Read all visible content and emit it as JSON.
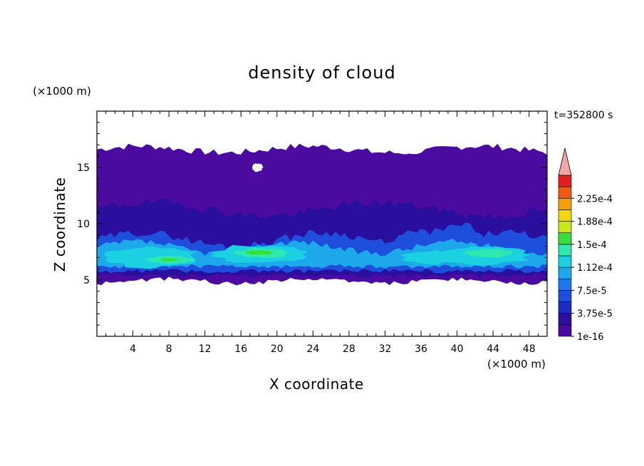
{
  "chart_data": {
    "type": "heatmap",
    "title": "density of cloud",
    "xlabel": "X coordinate",
    "ylabel": "Z coordinate",
    "x_unit": "(×1000 m)",
    "y_unit": "(×1000 m)",
    "time_label": "t=352800 s",
    "xlim": [
      0,
      50
    ],
    "ylim": [
      0,
      20
    ],
    "x_ticks": [
      4,
      8,
      12,
      16,
      20,
      24,
      28,
      32,
      36,
      40,
      44,
      48
    ],
    "y_ticks": [
      5,
      10,
      15
    ],
    "colorbar": {
      "levels": [
        1e-16,
        1.875e-05,
        3.75e-05,
        5.625e-05,
        7.5e-05,
        9.375e-05,
        0.0001125,
        0.00013125,
        0.00015,
        0.00016875,
        0.0001875,
        0.00020625,
        0.000225,
        0.00024375
      ],
      "labels": [
        "1e-16",
        "3.75e-5",
        "7.5e-5",
        "1.12e-4",
        "1.5e-4",
        "1.88e-4",
        "2.25e-4"
      ],
      "colors": [
        "#4b0aa0",
        "#2a0f9e",
        "#1c2bc2",
        "#1e4fdc",
        "#1f78ea",
        "#1ca8ea",
        "#1bd0e0",
        "#2ee8b0",
        "#36e03a",
        "#c8e81a",
        "#f0d810",
        "#f5a00a",
        "#f05a14",
        "#e41e1e"
      ],
      "extend_color": "#f4a4a4",
      "extend": "max"
    },
    "features": {
      "cloud_top_km": 16.5,
      "cloud_base_km": 5.0,
      "max_density_region": "x 16-20 km and 41-46 km, z 6.5-8 km"
    }
  }
}
